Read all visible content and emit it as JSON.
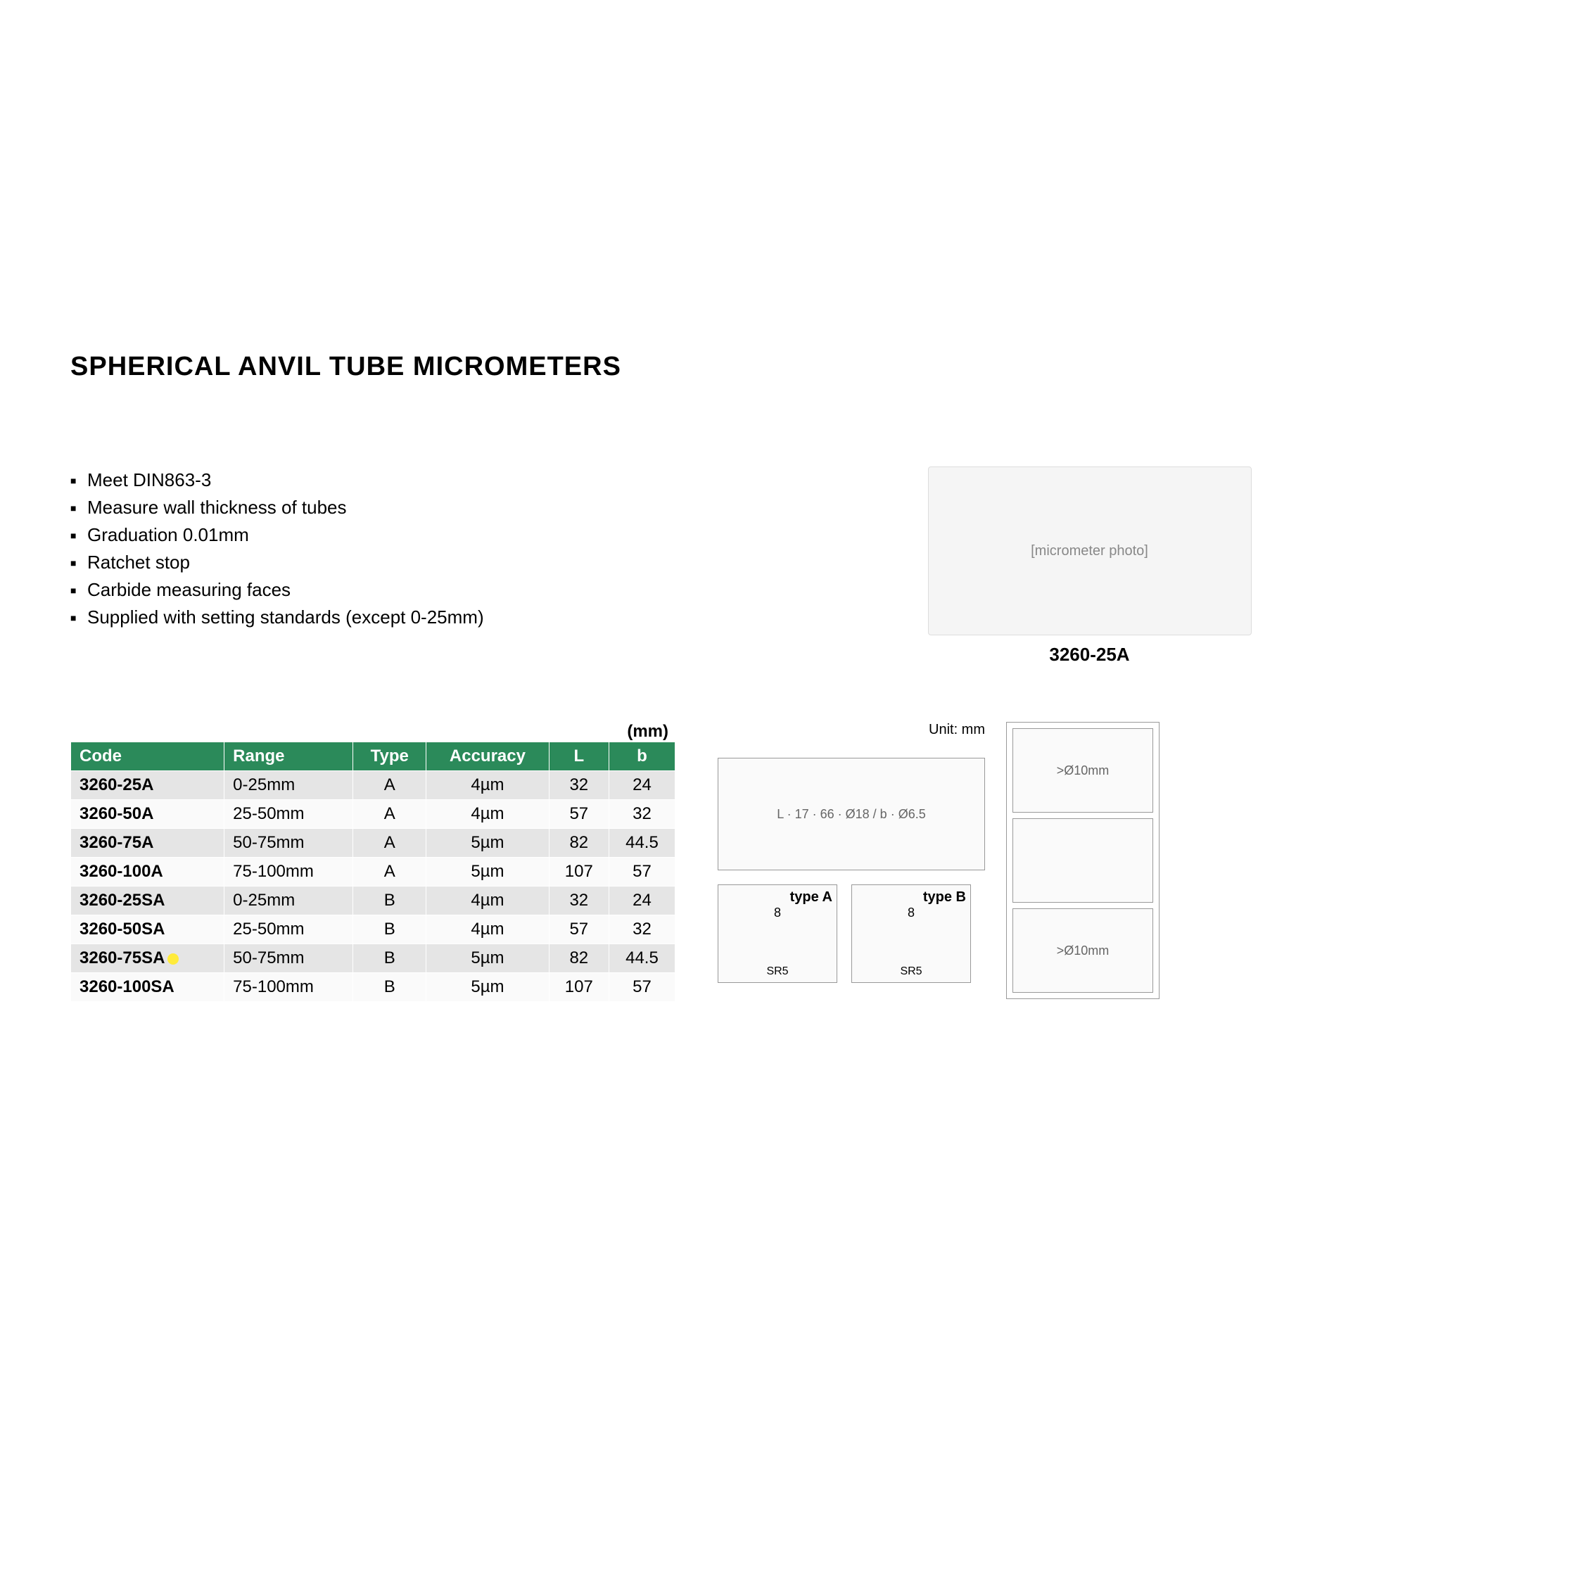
{
  "title": "SPHERICAL ANVIL TUBE MICROMETERS",
  "features": [
    "Meet DIN863-3",
    "Measure wall thickness of tubes",
    "Graduation 0.01mm",
    "Ratchet stop",
    "Carbide measuring faces",
    "Supplied with setting standards (except 0-25mm)"
  ],
  "product_caption": "3260-25A",
  "table": {
    "unit_suffix": "(mm)",
    "columns": [
      "Code",
      "Range",
      "Type",
      "Accuracy",
      "L",
      "b"
    ],
    "column_align": [
      "left",
      "left",
      "center",
      "center",
      "center",
      "center"
    ],
    "rows": [
      {
        "cells": [
          "3260-25A",
          "0-25mm",
          "A",
          "4µm",
          "32",
          "24"
        ],
        "shade": "odd"
      },
      {
        "cells": [
          "3260-50A",
          "25-50mm",
          "A",
          "4µm",
          "57",
          "32"
        ],
        "shade": "even"
      },
      {
        "cells": [
          "3260-75A",
          "50-75mm",
          "A",
          "5µm",
          "82",
          "44.5"
        ],
        "shade": "odd"
      },
      {
        "cells": [
          "3260-100A",
          "75-100mm",
          "A",
          "5µm",
          "107",
          "57"
        ],
        "shade": "even"
      },
      {
        "cells": [
          "3260-25SA",
          "0-25mm",
          "B",
          "4µm",
          "32",
          "24"
        ],
        "shade": "odd"
      },
      {
        "cells": [
          "3260-50SA",
          "25-50mm",
          "B",
          "4µm",
          "57",
          "32"
        ],
        "shade": "even"
      },
      {
        "cells": [
          "3260-75SA",
          "50-75mm",
          "B",
          "5µm",
          "82",
          "44.5"
        ],
        "shade": "odd",
        "highlight": true
      },
      {
        "cells": [
          "3260-100SA",
          "75-100mm",
          "B",
          "5µm",
          "107",
          "57"
        ],
        "shade": "even"
      }
    ],
    "header_bg": "#2b8a5a",
    "header_fg": "#ffffff",
    "row_odd_bg": "#e5e5e5",
    "row_even_bg": "#fafafa",
    "highlight_dot_color": "#ffeb3b"
  },
  "diagrams": {
    "unit_label": "Unit: mm",
    "main_dims": {
      "L": "L",
      "d1": "17",
      "d2": "66",
      "dia": "Ø18",
      "b": "b",
      "hole": "Ø6.5"
    },
    "typeA": {
      "label": "type A",
      "w": "8",
      "r": "SR5"
    },
    "typeB": {
      "label": "type B",
      "w": "8",
      "r": "SR5"
    },
    "side_top": ">Ø10mm",
    "side_bottom": ">Ø10mm"
  }
}
